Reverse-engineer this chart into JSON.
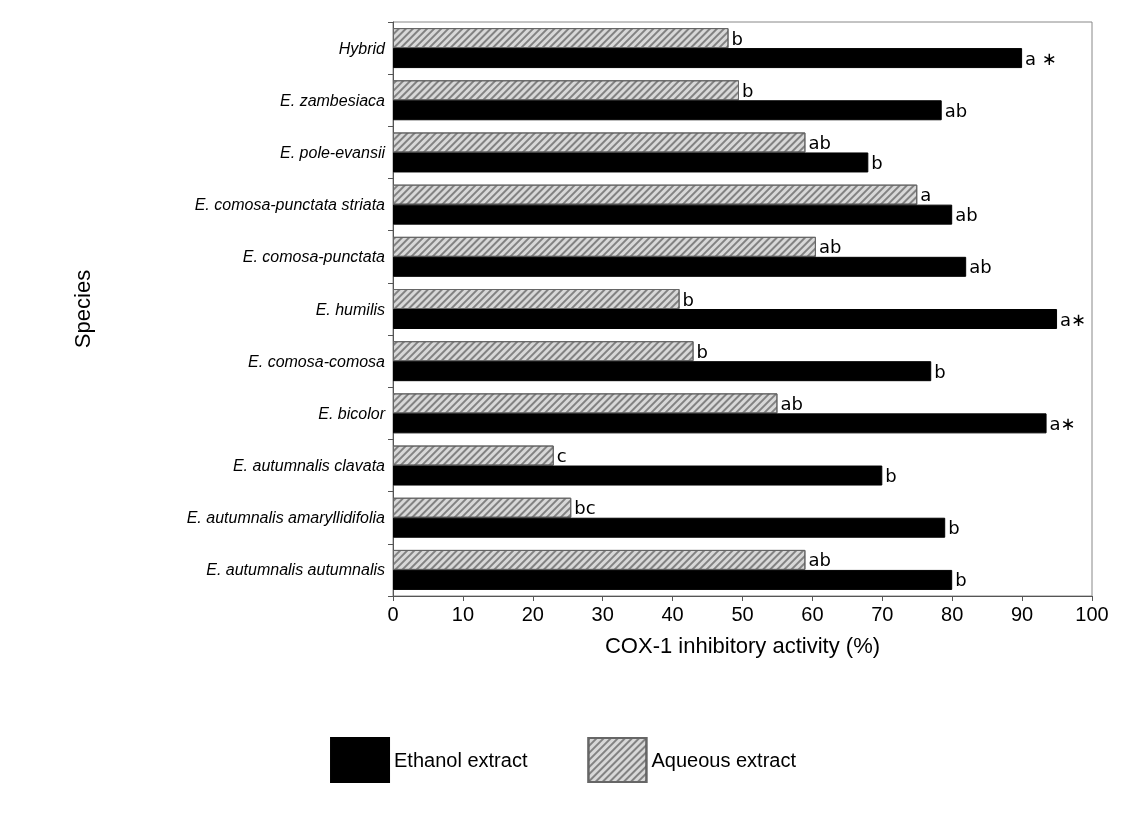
{
  "chart_data": {
    "type": "bar",
    "orientation": "horizontal",
    "xlabel": "COX-1 inhibitory activity (%)",
    "ylabel": "Species",
    "categories": [
      "Hybrid",
      "E. zambesiaca",
      "E. pole-evansii",
      "E. comosa-punctata striata",
      "E. comosa-punctata",
      "E. humilis",
      "E. comosa-comosa",
      "E. bicolor",
      "E. autumnalis clavata",
      "E. autumnalis amaryllidifolia",
      "E. autumnalis autumnalis"
    ],
    "series": [
      {
        "name": "Ethanol extract",
        "color": "#000000",
        "values": [
          90,
          78.5,
          68,
          80,
          82,
          95,
          77,
          93.5,
          70,
          79,
          80
        ],
        "value_labels": [
          "a ∗",
          "ab",
          "b",
          "ab",
          "ab",
          "a∗",
          "b",
          "a∗",
          "b",
          "b",
          "b"
        ]
      },
      {
        "name": "Aqueous extract",
        "color": "#d8d8d8",
        "values": [
          48,
          49.5,
          59,
          75,
          60.5,
          41,
          43,
          55,
          23,
          25.5,
          59
        ],
        "value_labels": [
          "b",
          "b",
          "ab",
          "a",
          "ab",
          "b",
          "b",
          "ab",
          "c",
          "bc",
          "ab"
        ]
      }
    ],
    "xlim": [
      0,
      100
    ],
    "xticks": [
      0,
      10,
      20,
      30,
      40,
      50,
      60,
      70,
      80,
      90,
      100
    ],
    "grid": false,
    "legend": "bottom"
  }
}
